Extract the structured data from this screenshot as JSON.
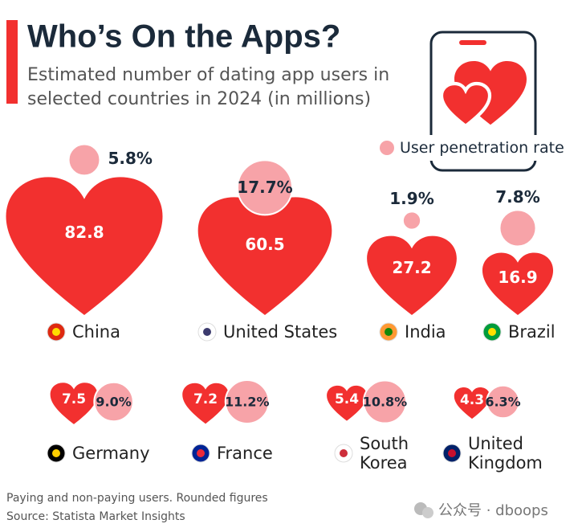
{
  "chart_data": {
    "type": "heart-bubble",
    "title": "Who’s On the Apps?",
    "subtitle": "Estimated number of dating app users in selected countries in 2024 (in millions)",
    "categories": [
      "China",
      "United States",
      "India",
      "Brazil",
      "Germany",
      "France",
      "South Korea",
      "United Kingdom"
    ],
    "series": [
      {
        "color": "#f2302f",
        "values": [
          82.8,
          60.5,
          27.2,
          16.9,
          7.5,
          7.2,
          5.4,
          4.3
        ]
      },
      {
        "name": "User penetration rate",
        "color": "#f7a3a8",
        "values": [
          5.8,
          17.7,
          1.9,
          7.8,
          9.0,
          11.2,
          10.8,
          6.3
        ],
        "value_labels": [
          "5.8%",
          "17.7%",
          "1.9%",
          "7.8%",
          "9.0%",
          "11.2%",
          "10.8%",
          "6.3%"
        ]
      }
    ],
    "notes": [
      "Paying and non-paying users. Rounded figures",
      "Source: Statista Market Insights"
    ],
    "watermark": "公众号 · dboops"
  }
}
